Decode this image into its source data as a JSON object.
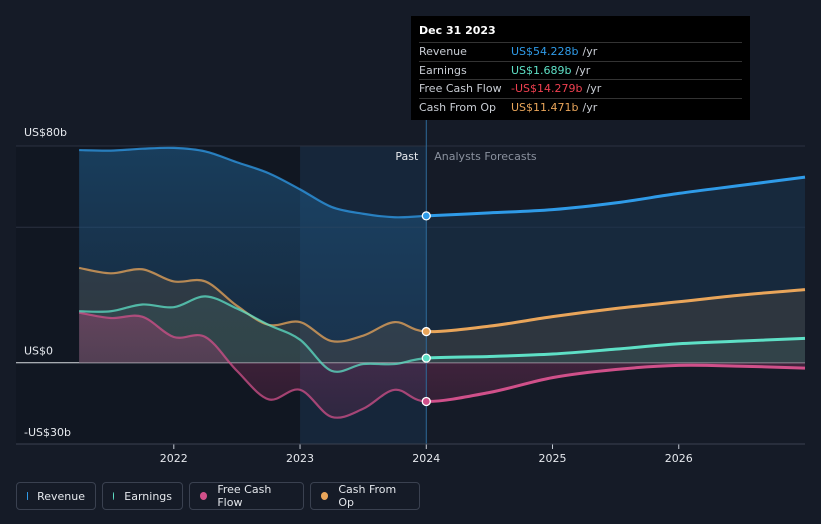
{
  "tooltip": {
    "date": "Dec 31 2023",
    "rows": [
      {
        "label": "Revenue",
        "value": "US$54.228b",
        "unit": "/yr",
        "color": "#2f9be8"
      },
      {
        "label": "Earnings",
        "value": "US$1.689b",
        "unit": "/yr",
        "color": "#5ee0c6"
      },
      {
        "label": "Free Cash Flow",
        "value": "-US$14.279b",
        "unit": "/yr",
        "color": "#f04050"
      },
      {
        "label": "Cash From Op",
        "value": "US$11.471b",
        "unit": "/yr",
        "color": "#e9a55a"
      }
    ]
  },
  "legend": [
    {
      "label": "Revenue",
      "color": "#2f9be8"
    },
    {
      "label": "Earnings",
      "color": "#5ee0c6"
    },
    {
      "label": "Free Cash Flow",
      "color": "#d0508a"
    },
    {
      "label": "Cash From Op",
      "color": "#e9a55a"
    }
  ],
  "chart_data": {
    "type": "line",
    "y_unit": "US$ billions",
    "ylim": [
      -30,
      80
    ],
    "y_tick_labels": [
      {
        "value": 80,
        "label": "US$80b"
      },
      {
        "value": 0,
        "label": "US$0"
      },
      {
        "value": -30,
        "label": "-US$30b"
      }
    ],
    "x_tick_labels": [
      {
        "value": 2022,
        "label": "2022"
      },
      {
        "value": 2023,
        "label": "2023"
      },
      {
        "value": 2024,
        "label": "2024"
      },
      {
        "value": 2025,
        "label": "2025"
      },
      {
        "value": 2026,
        "label": "2026"
      }
    ],
    "xlim": [
      2020.75,
      2027.0
    ],
    "past_label": "Past",
    "forecast_label": "Analysts Forecasts",
    "divider_x": 2024.0,
    "series": [
      {
        "name": "Revenue",
        "color": "#2f9be8",
        "x": [
          2021.25,
          2021.5,
          2021.75,
          2022.0,
          2022.25,
          2022.5,
          2022.75,
          2023.0,
          2023.25,
          2023.5,
          2023.75,
          2024.0,
          2024.5,
          2025.0,
          2025.5,
          2026.0,
          2026.5,
          2027.0
        ],
        "values": [
          78.5,
          78.3,
          79.0,
          79.3,
          78.0,
          74.0,
          70.0,
          64.0,
          57.5,
          55.0,
          53.7,
          54.2,
          55.3,
          56.5,
          59.0,
          62.5,
          65.5,
          68.5
        ]
      },
      {
        "name": "Earnings",
        "color": "#5ee0c6",
        "x": [
          2021.25,
          2021.5,
          2021.75,
          2022.0,
          2022.25,
          2022.5,
          2022.75,
          2023.0,
          2023.25,
          2023.5,
          2023.75,
          2024.0,
          2024.5,
          2025.0,
          2025.5,
          2026.0,
          2026.5,
          2027.0
        ],
        "values": [
          19.0,
          19.0,
          21.5,
          20.5,
          24.5,
          20.0,
          14.0,
          8.5,
          -3.0,
          -0.5,
          -0.5,
          1.7,
          2.3,
          3.2,
          5.0,
          7.0,
          8.0,
          9.0
        ]
      },
      {
        "name": "Free Cash Flow",
        "color": "#d0508a",
        "x": [
          2021.25,
          2021.5,
          2021.75,
          2022.0,
          2022.25,
          2022.5,
          2022.75,
          2023.0,
          2023.25,
          2023.5,
          2023.75,
          2024.0,
          2024.5,
          2025.0,
          2025.5,
          2026.0,
          2026.5,
          2027.0
        ],
        "values": [
          18.5,
          16.5,
          17.0,
          9.5,
          9.5,
          -3.0,
          -13.5,
          -10.0,
          -20.0,
          -17.0,
          -10.0,
          -14.3,
          -11.0,
          -5.5,
          -2.5,
          -1.0,
          -1.3,
          -2.0
        ]
      },
      {
        "name": "Cash From Op",
        "color": "#e9a55a",
        "x": [
          2021.25,
          2021.5,
          2021.75,
          2022.0,
          2022.25,
          2022.5,
          2022.75,
          2023.0,
          2023.25,
          2023.5,
          2023.75,
          2024.0,
          2024.5,
          2025.0,
          2025.5,
          2026.0,
          2026.5,
          2027.0
        ],
        "values": [
          35.0,
          33.0,
          34.5,
          30.0,
          30.0,
          21.0,
          14.0,
          15.0,
          8.0,
          10.0,
          15.0,
          11.5,
          13.5,
          17.0,
          20.0,
          22.5,
          25.0,
          27.0
        ]
      }
    ]
  }
}
